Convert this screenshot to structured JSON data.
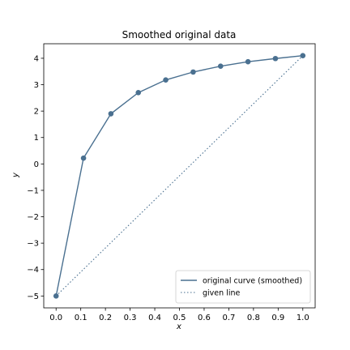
{
  "chart_data": {
    "type": "line",
    "title": "Smoothed original data",
    "xlabel": "x",
    "ylabel": "y",
    "xlim": [
      -0.05,
      1.05
    ],
    "ylim": [
      -5.45,
      4.55
    ],
    "xticks": [
      0.0,
      0.1,
      0.2,
      0.3,
      0.4,
      0.5,
      0.6,
      0.7,
      0.8,
      0.9,
      1.0
    ],
    "xtick_labels": [
      "0.0",
      "0.1",
      "0.2",
      "0.3",
      "0.4",
      "0.5",
      "0.6",
      "0.7",
      "0.8",
      "0.9",
      "1.0"
    ],
    "yticks": [
      -5,
      -4,
      -3,
      -2,
      -1,
      0,
      1,
      2,
      3,
      4
    ],
    "ytick_labels": [
      "−5",
      "−4",
      "−3",
      "−2",
      "−1",
      "0",
      "1",
      "2",
      "3",
      "4"
    ],
    "grid": false,
    "legend_position": "bottom-right",
    "series": [
      {
        "name": "original curve (smoothed)",
        "style": "solid",
        "color": "#4a7090",
        "marker": "circle",
        "x": [
          0.0,
          0.1111,
          0.2222,
          0.3333,
          0.4444,
          0.5556,
          0.6667,
          0.7778,
          0.8889,
          1.0
        ],
        "y": [
          -5.0,
          0.22,
          1.9,
          2.7,
          3.18,
          3.48,
          3.7,
          3.87,
          3.99,
          4.1
        ]
      },
      {
        "name": "given line",
        "style": "dotted",
        "color": "#4a7090",
        "marker": "none",
        "x": [
          0.0,
          1.0
        ],
        "y": [
          -5.0,
          4.1
        ]
      }
    ]
  }
}
